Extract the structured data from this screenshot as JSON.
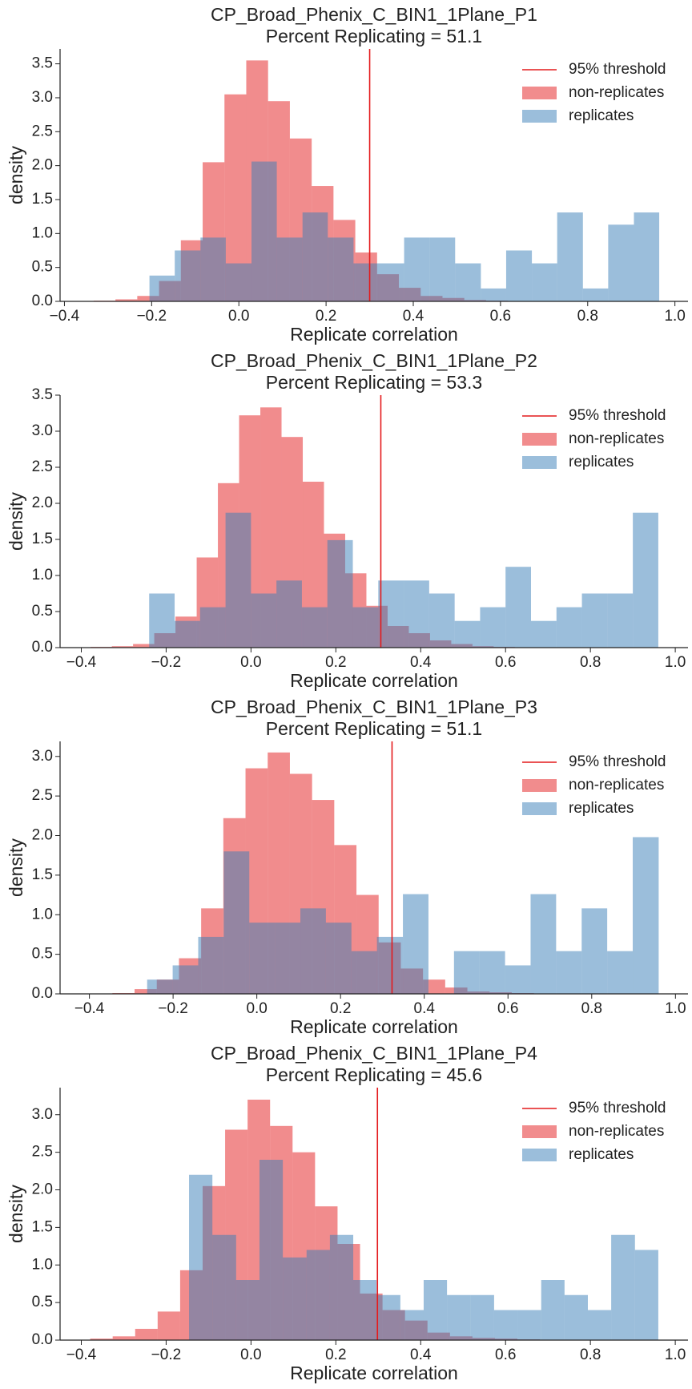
{
  "chart_data": [
    {
      "type": "histogram",
      "title": "CP_Broad_Phenix_C_BIN1_1Plane_P1",
      "subtitle": "Percent Replicating = 51.1",
      "xlabel": "Replicate correlation",
      "ylabel": "density",
      "xlim": [
        -0.41,
        1.03
      ],
      "ylim": [
        0,
        3.72
      ],
      "xticks": [
        {
          "value": -0.4,
          "label": "−0.4"
        },
        {
          "value": -0.2,
          "label": "−0.2"
        },
        {
          "value": 0,
          "label": "0.0"
        },
        0.2,
        0.4,
        0.6,
        0.8,
        {
          "value": 1,
          "label": "1.0"
        }
      ],
      "yticks": [
        {
          "value": 0,
          "label": "0.0"
        },
        0.5,
        {
          "value": 1,
          "label": "1.0"
        },
        1.5,
        {
          "value": 2,
          "label": "2.0"
        },
        2.5,
        {
          "value": 3,
          "label": "3.0"
        },
        3.5
      ],
      "alpha": 0.5,
      "legend": "upper right",
      "threshold": {
        "name": "95% threshold",
        "value": 0.3,
        "color": "#e41a1c"
      },
      "series": [
        {
          "name": "non-replicates",
          "color": "#e41a1c",
          "bins": [
            -0.333,
            -0.283,
            -0.233,
            -0.183,
            -0.133,
            -0.083,
            -0.033,
            0.017,
            0.067,
            0.117,
            0.167,
            0.217,
            0.267,
            0.317,
            0.367,
            0.417,
            0.467,
            0.517,
            0.567,
            0.617,
            0.667
          ],
          "values": [
            0.01,
            0.03,
            0.08,
            0.3,
            0.9,
            2.05,
            3.05,
            3.55,
            2.95,
            2.4,
            1.7,
            1.2,
            0.72,
            0.4,
            0.2,
            0.08,
            0.05,
            0.02,
            0.01,
            0.005
          ]
        },
        {
          "name": "replicates",
          "color": "#377eb8",
          "bins": [
            -0.205,
            -0.147,
            -0.088,
            -0.03,
            0.029,
            0.087,
            0.146,
            0.204,
            0.263,
            0.321,
            0.379,
            0.438,
            0.496,
            0.555,
            0.613,
            0.672,
            0.73,
            0.789,
            0.847,
            0.906,
            0.964
          ],
          "values": [
            0.38,
            0.75,
            0.94,
            0.56,
            2.06,
            0.94,
            1.31,
            0.94,
            0.56,
            0.56,
            0.94,
            0.94,
            0.56,
            0.19,
            0.75,
            0.56,
            1.31,
            0.19,
            1.13,
            1.31
          ]
        }
      ]
    },
    {
      "type": "histogram",
      "title": "CP_Broad_Phenix_C_BIN1_1Plane_P2",
      "subtitle": "Percent Replicating = 53.3",
      "xlabel": "Replicate correlation",
      "ylabel": "density",
      "xlim": [
        -0.45,
        1.03
      ],
      "ylim": [
        0,
        3.5
      ],
      "xticks": [
        {
          "value": -0.4,
          "label": "−0.4"
        },
        {
          "value": -0.2,
          "label": "−0.2"
        },
        {
          "value": 0,
          "label": "0.0"
        },
        0.2,
        0.4,
        0.6,
        0.8,
        {
          "value": 1,
          "label": "1.0"
        }
      ],
      "yticks": [
        {
          "value": 0,
          "label": "0.0"
        },
        0.5,
        {
          "value": 1,
          "label": "1.0"
        },
        1.5,
        {
          "value": 2,
          "label": "2.0"
        },
        2.5,
        {
          "value": 3,
          "label": "3.0"
        },
        3.5
      ],
      "alpha": 0.5,
      "legend": "upper right",
      "threshold": {
        "name": "95% threshold",
        "value": 0.306,
        "color": "#e41a1c"
      },
      "series": [
        {
          "name": "non-replicates",
          "color": "#e41a1c",
          "bins": [
            -0.378,
            -0.328,
            -0.278,
            -0.228,
            -0.178,
            -0.128,
            -0.078,
            -0.028,
            0.022,
            0.072,
            0.122,
            0.172,
            0.222,
            0.272,
            0.322,
            0.372,
            0.422,
            0.472,
            0.522,
            0.572,
            0.622
          ],
          "values": [
            0.01,
            0.02,
            0.05,
            0.2,
            0.43,
            1.25,
            2.28,
            3.22,
            3.33,
            2.92,
            2.3,
            1.58,
            1.03,
            0.58,
            0.3,
            0.2,
            0.1,
            0.05,
            0.02,
            0.01
          ]
        },
        {
          "name": "replicates",
          "color": "#377eb8",
          "bins": [
            -0.24,
            -0.18,
            -0.12,
            -0.06,
            0.0,
            0.06,
            0.12,
            0.18,
            0.24,
            0.3,
            0.36,
            0.42,
            0.48,
            0.54,
            0.6,
            0.66,
            0.72,
            0.78,
            0.84,
            0.9,
            0.96
          ],
          "values": [
            0.75,
            0.37,
            0.56,
            1.87,
            0.75,
            0.93,
            0.56,
            1.49,
            0.56,
            0.93,
            0.93,
            0.75,
            0.37,
            0.56,
            1.12,
            0.37,
            0.56,
            0.75,
            0.75,
            1.87
          ]
        }
      ]
    },
    {
      "type": "histogram",
      "title": "CP_Broad_Phenix_C_BIN1_1Plane_P3",
      "subtitle": "Percent Replicating = 51.1",
      "xlabel": "Replicate correlation",
      "ylabel": "density",
      "xlim": [
        -0.47,
        1.03
      ],
      "ylim": [
        0,
        3.19
      ],
      "xticks": [
        {
          "value": -0.4,
          "label": "−0.4"
        },
        {
          "value": -0.2,
          "label": "−0.2"
        },
        {
          "value": 0,
          "label": "0.0"
        },
        0.2,
        0.4,
        0.6,
        0.8,
        {
          "value": 1,
          "label": "1.0"
        }
      ],
      "yticks": [
        {
          "value": 0,
          "label": "0.0"
        },
        0.5,
        {
          "value": 1,
          "label": "1.0"
        },
        1.5,
        {
          "value": 2,
          "label": "2.0"
        },
        2.5,
        {
          "value": 3,
          "label": "3.0"
        }
      ],
      "alpha": 0.5,
      "legend": "upper right",
      "threshold": {
        "name": "95% threshold",
        "value": 0.323,
        "color": "#e41a1c"
      },
      "series": [
        {
          "name": "non-replicates",
          "color": "#e41a1c",
          "bins": [
            -0.345,
            -0.292,
            -0.239,
            -0.186,
            -0.133,
            -0.08,
            -0.027,
            0.026,
            0.079,
            0.132,
            0.185,
            0.238,
            0.291,
            0.344,
            0.397,
            0.45,
            0.503,
            0.556,
            0.609,
            0.662,
            0.715
          ],
          "values": [
            0.01,
            0.06,
            0.18,
            0.45,
            1.08,
            2.22,
            2.85,
            3.05,
            2.78,
            2.45,
            1.88,
            1.25,
            0.65,
            0.32,
            0.18,
            0.08,
            0.03,
            0.02,
            0.01,
            0.005
          ]
        },
        {
          "name": "replicates",
          "color": "#377eb8",
          "bins": [
            -0.262,
            -0.201,
            -0.14,
            -0.079,
            -0.018,
            0.043,
            0.104,
            0.165,
            0.226,
            0.287,
            0.349,
            0.41,
            0.471,
            0.532,
            0.593,
            0.654,
            0.715,
            0.776,
            0.837,
            0.898,
            0.96
          ],
          "values": [
            0.18,
            0.36,
            0.72,
            1.8,
            0.9,
            0.9,
            1.08,
            0.9,
            0.54,
            0.72,
            1.26,
            0,
            0.54,
            0.54,
            0.36,
            1.26,
            0.54,
            1.08,
            0.54,
            1.98
          ]
        }
      ]
    },
    {
      "type": "histogram",
      "title": "CP_Broad_Phenix_C_BIN1_1Plane_P4",
      "subtitle": "Percent Replicating = 45.6",
      "xlabel": "Replicate correlation",
      "ylabel": "density",
      "xlim": [
        -0.45,
        1.03
      ],
      "ylim": [
        0,
        3.36
      ],
      "xticks": [
        {
          "value": -0.4,
          "label": "−0.4"
        },
        {
          "value": -0.2,
          "label": "−0.2"
        },
        {
          "value": 0,
          "label": "0.0"
        },
        0.2,
        0.4,
        0.6,
        0.8,
        {
          "value": 1,
          "label": "1.0"
        }
      ],
      "yticks": [
        {
          "value": 0,
          "label": "0.0"
        },
        0.5,
        {
          "value": 1,
          "label": "1.0"
        },
        1.5,
        {
          "value": 2,
          "label": "2.0"
        },
        2.5,
        {
          "value": 3,
          "label": "3.0"
        }
      ],
      "alpha": 0.5,
      "legend": "upper right",
      "threshold": {
        "name": "95% threshold",
        "value": 0.298,
        "color": "#e41a1c"
      },
      "series": [
        {
          "name": "non-replicates",
          "color": "#e41a1c",
          "bins": [
            -0.379,
            -0.326,
            -0.273,
            -0.22,
            -0.167,
            -0.114,
            -0.061,
            -0.008,
            0.045,
            0.098,
            0.151,
            0.204,
            0.257,
            0.31,
            0.363,
            0.416,
            0.469,
            0.522,
            0.575,
            0.628,
            0.681
          ],
          "values": [
            0.02,
            0.05,
            0.15,
            0.38,
            0.93,
            2.05,
            2.8,
            3.2,
            2.85,
            2.5,
            1.78,
            1.28,
            0.62,
            0.4,
            0.26,
            0.1,
            0.05,
            0.03,
            0.02,
            0.01
          ]
        },
        {
          "name": "replicates",
          "color": "#377eb8",
          "bins": [
            -0.146,
            -0.091,
            -0.035,
            0.02,
            0.075,
            0.131,
            0.186,
            0.241,
            0.296,
            0.352,
            0.407,
            0.462,
            0.518,
            0.573,
            0.628,
            0.684,
            0.739,
            0.794,
            0.849,
            0.905,
            0.96
          ],
          "values": [
            2.2,
            1.4,
            0.8,
            2.4,
            1.1,
            1.2,
            1.4,
            0.8,
            0.6,
            0.4,
            0.8,
            0.6,
            0.6,
            0.4,
            0.4,
            0.8,
            0.6,
            0.4,
            1.4,
            1.2
          ]
        }
      ]
    }
  ]
}
